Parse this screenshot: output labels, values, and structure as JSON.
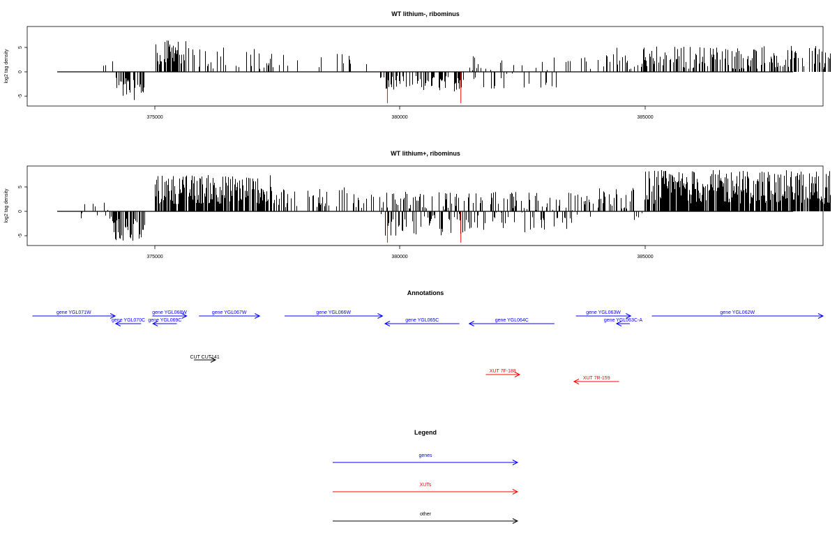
{
  "chart_data": [
    {
      "type": "bar",
      "title": "WT lithium-, ribominus",
      "xlabel": "",
      "ylabel": "log2 tag density",
      "xlim": [
        372900,
        388900
      ],
      "ylim": [
        -6.5,
        9
      ],
      "x_ticks": [
        375000,
        380000,
        385000
      ],
      "x_tick_labels": [
        "375000",
        "380000",
        "385000"
      ],
      "y_ticks": [
        -5,
        0,
        5
      ],
      "y_tick_labels": [
        "-5",
        "0",
        "5"
      ],
      "grid": false,
      "colors": {
        "bars": "#000000",
        "markers": "#ff0000"
      },
      "marked_positions": [
        379750,
        381250
      ],
      "marked_values": [
        -6.4,
        -6.4
      ],
      "segments": [
        {
          "start": 373100,
          "end": 374200,
          "density": 0.08,
          "min": 0.5,
          "max": 3.5
        },
        {
          "start": 374200,
          "end": 374800,
          "density": 0.6,
          "min": -5.8,
          "max": -1.0
        },
        {
          "start": 375000,
          "end": 375700,
          "density": 0.7,
          "min": 1.5,
          "max": 6.5
        },
        {
          "start": 375700,
          "end": 377400,
          "density": 0.25,
          "min": 0.5,
          "max": 5.0
        },
        {
          "start": 377400,
          "end": 379600,
          "density": 0.07,
          "min": 0.5,
          "max": 3.8
        },
        {
          "start": 379600,
          "end": 381300,
          "density": 0.5,
          "min": -4.0,
          "max": -0.8
        },
        {
          "start": 381300,
          "end": 383200,
          "density": 0.2,
          "min": -3.5,
          "max": 3.8
        },
        {
          "start": 383200,
          "end": 384200,
          "density": 0.15,
          "min": 0.5,
          "max": 3.5
        },
        {
          "start": 384200,
          "end": 388800,
          "density": 0.45,
          "min": 0.5,
          "max": 5.3
        }
      ]
    },
    {
      "type": "bar",
      "title": "WT lithium+, ribominus",
      "xlabel": "",
      "ylabel": "log2 tag density",
      "xlim": [
        372900,
        388900
      ],
      "ylim": [
        -6.8,
        9
      ],
      "x_ticks": [
        375000,
        380000,
        385000
      ],
      "x_tick_labels": [
        "375000",
        "380000",
        "385000"
      ],
      "y_ticks": [
        -5,
        0,
        5
      ],
      "y_tick_labels": [
        "-5",
        "0",
        "5"
      ],
      "grid": false,
      "colors": {
        "bars": "#000000",
        "markers": "#ff0000"
      },
      "marked_positions": [
        379750,
        381250
      ],
      "marked_values": [
        -6.4,
        -6.4
      ],
      "segments": [
        {
          "start": 373100,
          "end": 374100,
          "density": 0.25,
          "min": -1.5,
          "max": 2.5
        },
        {
          "start": 374100,
          "end": 374800,
          "density": 0.7,
          "min": -6.2,
          "max": -1.0
        },
        {
          "start": 375000,
          "end": 377400,
          "density": 0.8,
          "min": 1.5,
          "max": 7.5
        },
        {
          "start": 377400,
          "end": 379600,
          "density": 0.3,
          "min": 0.5,
          "max": 5.0
        },
        {
          "start": 379600,
          "end": 381400,
          "density": 0.75,
          "min": -5.0,
          "max": 4.0
        },
        {
          "start": 381400,
          "end": 383600,
          "density": 0.55,
          "min": -4.5,
          "max": 4.0
        },
        {
          "start": 383600,
          "end": 385000,
          "density": 0.45,
          "min": -2.0,
          "max": 5.0
        },
        {
          "start": 385000,
          "end": 388800,
          "density": 0.85,
          "min": 1.5,
          "max": 8.5
        }
      ]
    }
  ],
  "annotations": {
    "title": "Annotations",
    "genes": [
      {
        "label": "gene YGL071W",
        "start": 372500,
        "end": 374190,
        "strand": "+",
        "row": 0
      },
      {
        "label": "gene YGL070C",
        "start": 374200,
        "end": 374720,
        "strand": "-",
        "row": 1
      },
      {
        "label": "gene YGL068W",
        "start": 374950,
        "end": 375650,
        "strand": "+",
        "row": 0
      },
      {
        "label": "gene YGL069C",
        "start": 374960,
        "end": 375450,
        "strand": "-",
        "row": 1
      },
      {
        "label": "gene YGL067W",
        "start": 375900,
        "end": 377140,
        "strand": "+",
        "row": 0
      },
      {
        "label": "gene YGL066W",
        "start": 377650,
        "end": 379650,
        "strand": "+",
        "row": 0
      },
      {
        "label": "gene YGL065C",
        "start": 379700,
        "end": 381220,
        "strand": "-",
        "row": 1
      },
      {
        "label": "gene YGL064C",
        "start": 381420,
        "end": 383160,
        "strand": "-",
        "row": 1
      },
      {
        "label": "gene YGL063W",
        "start": 383600,
        "end": 384720,
        "strand": "+",
        "row": 0
      },
      {
        "label": "gene YGL063C-A",
        "start": 384430,
        "end": 384700,
        "strand": "-",
        "row": 1
      },
      {
        "label": "gene YGL062W",
        "start": 385150,
        "end": 389000,
        "strand": "+",
        "row": 0
      }
    ],
    "other": [
      {
        "label": "CUT CUT141",
        "start": 375800,
        "end": 376240,
        "strand": "+"
      }
    ],
    "xuts": [
      {
        "label": "XUT 7F-188",
        "start": 381760,
        "end": 382450,
        "strand": "+",
        "row": 0
      },
      {
        "label": "XUT 7R-159",
        "start": 383560,
        "end": 384480,
        "strand": "-",
        "row": 1
      }
    ]
  },
  "legend": {
    "title": "Legend",
    "items": [
      {
        "label": "genes",
        "color": "#0000ff"
      },
      {
        "label": "XUTs",
        "color": "#ff0000"
      },
      {
        "label": "other",
        "color": "#000000"
      }
    ]
  }
}
